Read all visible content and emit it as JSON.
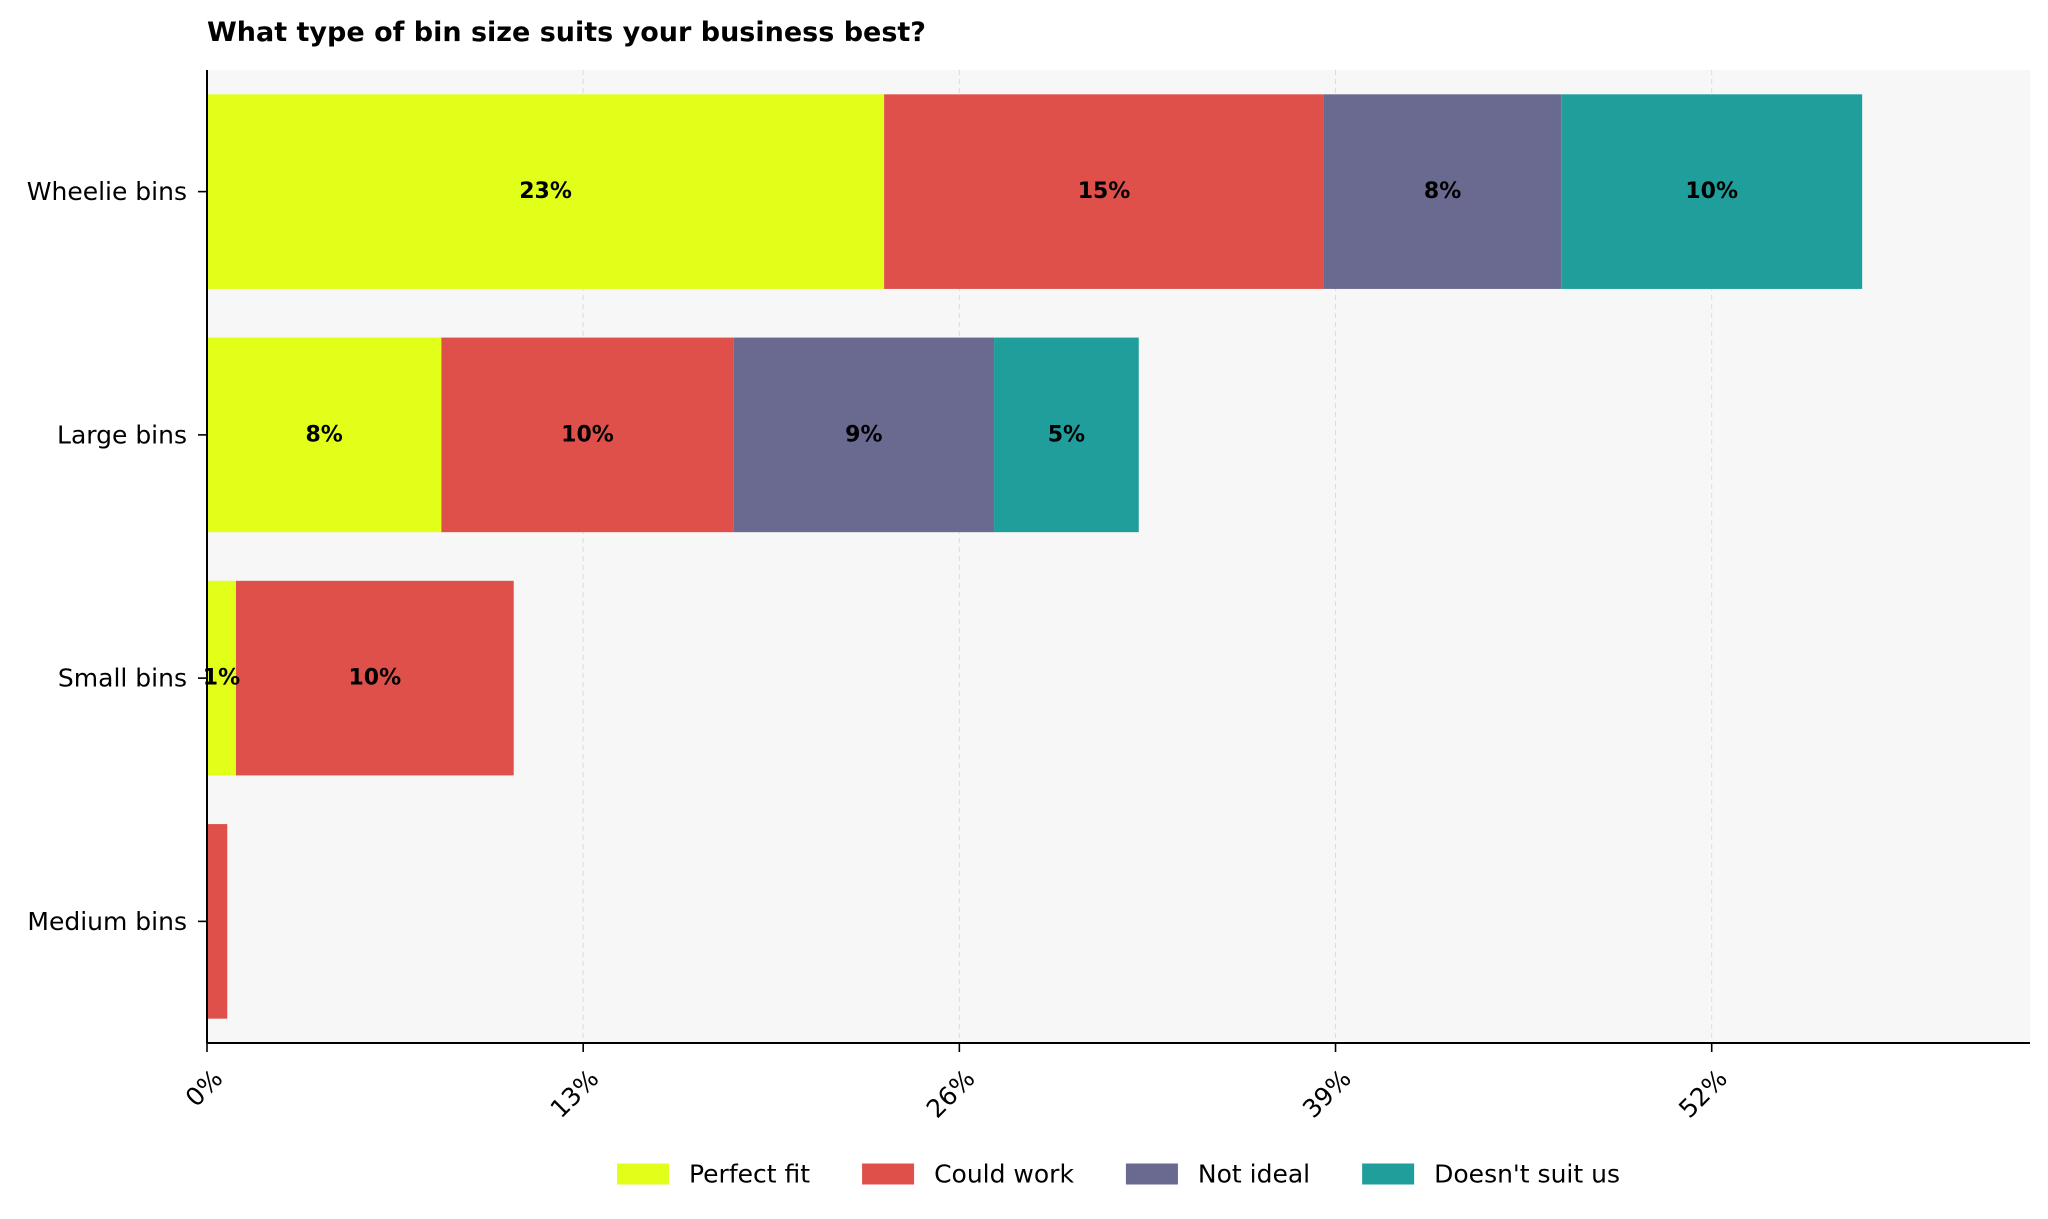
{
  "chart_data": {
    "type": "bar",
    "orientation": "horizontal",
    "stacked": true,
    "title": "What type of bin size suits your business best?",
    "xlabel": "",
    "ylabel": "",
    "categories": [
      "Wheelie bins",
      "Large bins",
      "Small bins",
      "Medium bins"
    ],
    "series": [
      {
        "name": "Perfect fit",
        "color": "#e2ff1a",
        "values": [
          23.4,
          8.1,
          1.0,
          0
        ],
        "labels": [
          "23%",
          "8%",
          "1%",
          ""
        ]
      },
      {
        "name": "Could work",
        "color": "#df504b",
        "values": [
          15.2,
          10.1,
          9.6,
          0.7
        ],
        "labels": [
          "15%",
          "10%",
          "10%",
          ""
        ]
      },
      {
        "name": "Not ideal",
        "color": "#6a698f",
        "values": [
          8.2,
          9.0,
          0,
          0
        ],
        "labels": [
          "8%",
          "9%",
          "",
          ""
        ]
      },
      {
        "name": "Doesn't suit us",
        "color": "#1f9e9c",
        "values": [
          10.4,
          5.0,
          0,
          0
        ],
        "labels": [
          "10%",
          "5%",
          "",
          ""
        ]
      }
    ],
    "xlim": [
      0,
      63
    ],
    "xticks": [
      0,
      13,
      26,
      39,
      52
    ],
    "xtick_labels": [
      "0%",
      "13%",
      "26%",
      "39%",
      "52%"
    ],
    "grid": "x-dashed",
    "legend_position": "bottom-center",
    "plot_background": "#f7f7f7"
  }
}
